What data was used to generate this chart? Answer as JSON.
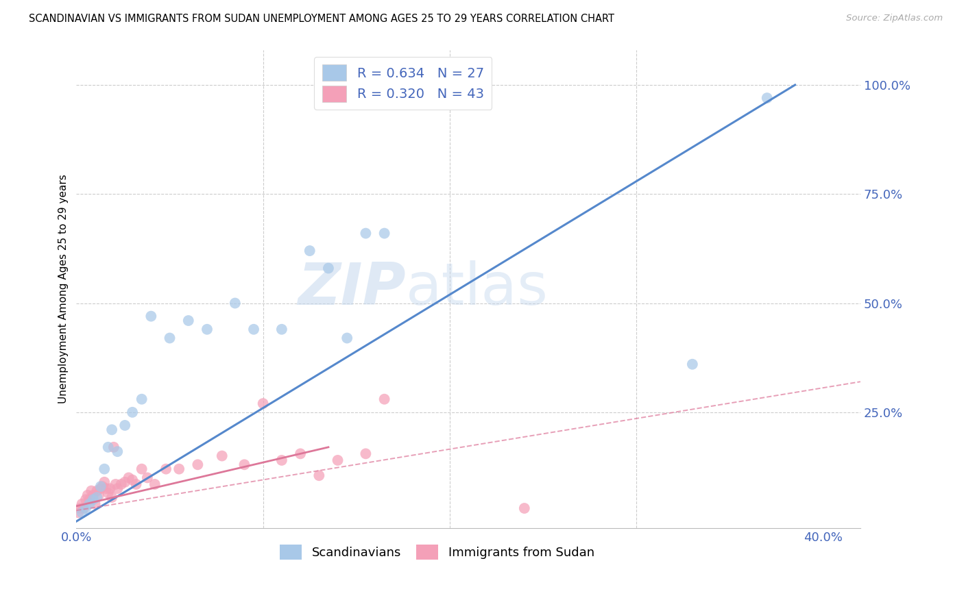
{
  "title": "SCANDINAVIAN VS IMMIGRANTS FROM SUDAN UNEMPLOYMENT AMONG AGES 25 TO 29 YEARS CORRELATION CHART",
  "source": "Source: ZipAtlas.com",
  "ylabel": "Unemployment Among Ages 25 to 29 years",
  "xlim": [
    0.0,
    0.42
  ],
  "ylim": [
    -0.015,
    1.08
  ],
  "legend_R1": "R = 0.634",
  "legend_N1": "N = 27",
  "legend_R2": "R = 0.320",
  "legend_N2": "N = 43",
  "color_blue": "#a8c8e8",
  "color_pink": "#f4a0b8",
  "color_blue_line": "#5588cc",
  "color_pink_line": "#dd7799",
  "color_text": "#4466bb",
  "watermark": "ZIPatlas",
  "scatter_blue_x": [
    0.003,
    0.005,
    0.007,
    0.009,
    0.011,
    0.013,
    0.015,
    0.017,
    0.019,
    0.022,
    0.026,
    0.03,
    0.035,
    0.04,
    0.05,
    0.06,
    0.07,
    0.085,
    0.095,
    0.11,
    0.125,
    0.135,
    0.145,
    0.155,
    0.165,
    0.33,
    0.37
  ],
  "scatter_blue_y": [
    0.02,
    0.03,
    0.04,
    0.05,
    0.055,
    0.08,
    0.12,
    0.17,
    0.21,
    0.16,
    0.22,
    0.25,
    0.28,
    0.47,
    0.42,
    0.46,
    0.44,
    0.5,
    0.44,
    0.44,
    0.62,
    0.58,
    0.42,
    0.66,
    0.66,
    0.36,
    0.97
  ],
  "scatter_pink_x": [
    0.001,
    0.002,
    0.003,
    0.004,
    0.005,
    0.006,
    0.007,
    0.008,
    0.009,
    0.01,
    0.011,
    0.012,
    0.013,
    0.014,
    0.015,
    0.016,
    0.017,
    0.018,
    0.019,
    0.02,
    0.021,
    0.022,
    0.024,
    0.026,
    0.028,
    0.03,
    0.032,
    0.035,
    0.038,
    0.042,
    0.048,
    0.055,
    0.065,
    0.078,
    0.09,
    0.1,
    0.11,
    0.12,
    0.13,
    0.14,
    0.155,
    0.165,
    0.24
  ],
  "scatter_pink_y": [
    0.02,
    0.03,
    0.04,
    0.03,
    0.05,
    0.06,
    0.05,
    0.07,
    0.06,
    0.04,
    0.07,
    0.06,
    0.075,
    0.08,
    0.09,
    0.075,
    0.065,
    0.075,
    0.055,
    0.17,
    0.085,
    0.075,
    0.085,
    0.09,
    0.1,
    0.095,
    0.085,
    0.12,
    0.1,
    0.085,
    0.12,
    0.12,
    0.13,
    0.15,
    0.13,
    0.27,
    0.14,
    0.155,
    0.105,
    0.14,
    0.155,
    0.28,
    0.03
  ],
  "blue_line_x": [
    0.0,
    0.385
  ],
  "blue_line_y": [
    0.0,
    1.0
  ],
  "pink_solid_line_x": [
    0.0,
    0.135
  ],
  "pink_solid_line_y": [
    0.035,
    0.17
  ],
  "pink_dash_line_x": [
    0.0,
    0.42
  ],
  "pink_dash_line_y": [
    0.025,
    0.32
  ],
  "figsize": [
    14.06,
    8.92
  ],
  "dpi": 100
}
